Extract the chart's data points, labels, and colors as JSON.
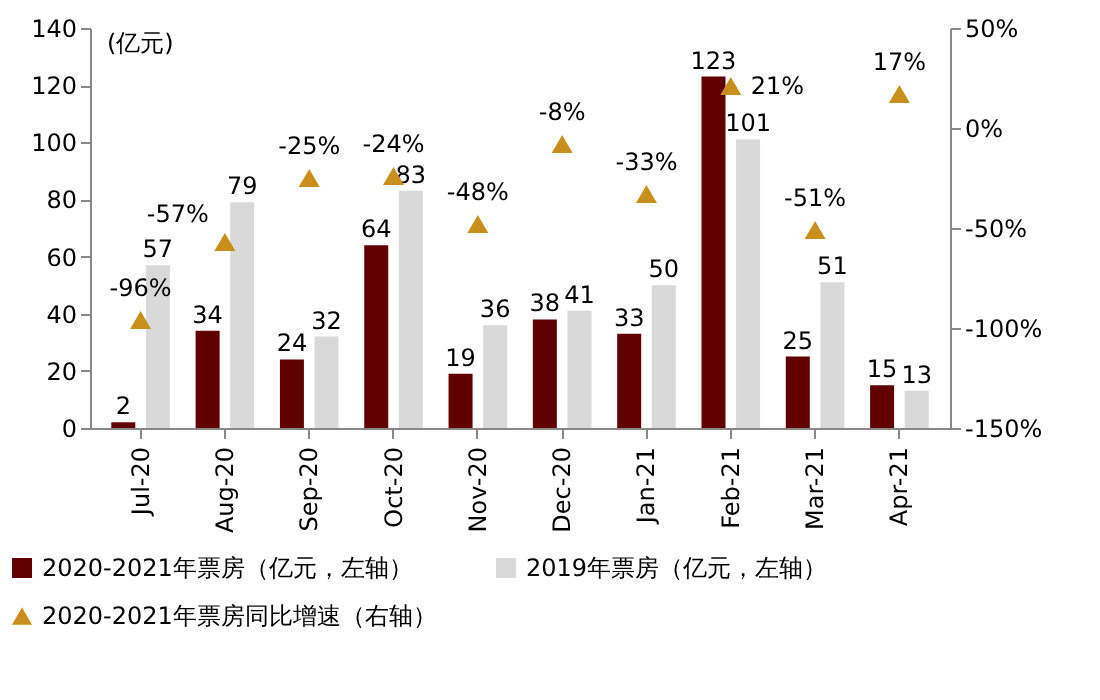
{
  "chart_data": {
    "type": "bar",
    "ylabel": "(亿元)",
    "categories": [
      "Jul-20",
      "Aug-20",
      "Sep-20",
      "Oct-20",
      "Nov-20",
      "Dec-20",
      "Jan-21",
      "Feb-21",
      "Mar-21",
      "Apr-21"
    ],
    "series": [
      {
        "name": "2020-2021年票房（亿元，左轴）",
        "color": "#600000",
        "values": [
          2,
          34,
          24,
          64,
          19,
          38,
          33,
          123,
          25,
          15
        ]
      },
      {
        "name": "2019年票房（亿元，左轴）",
        "color": "#d9d9d9",
        "values": [
          57,
          79,
          32,
          83,
          36,
          41,
          50,
          101,
          51,
          13
        ]
      },
      {
        "name": "2020-2021年票房同比增速（右轴）",
        "type": "scatter",
        "axis": "y2",
        "color": "#c8901a",
        "values": [
          -96,
          -57,
          -25,
          -24,
          -48,
          -8,
          -33,
          21,
          -51,
          17
        ],
        "value_labels": [
          "-96%",
          "-57%",
          "-25%",
          "-24%",
          "-48%",
          "-8%",
          "-33%",
          "21%",
          "-51%",
          "17%"
        ]
      }
    ],
    "data_labels": true,
    "marker": "triangle",
    "ylim": [
      0,
      140
    ],
    "yticks": [
      0,
      20,
      40,
      60,
      80,
      100,
      120,
      140
    ],
    "y2lim": [
      -150,
      50
    ],
    "y2ticks": [
      {
        "value": -150,
        "label": "-150%"
      },
      {
        "value": -100,
        "label": "-100%"
      },
      {
        "value": -50,
        "label": "-50%"
      },
      {
        "value": 0,
        "label": "0%"
      },
      {
        "value": 50,
        "label": "50%"
      }
    ],
    "grid": false,
    "legend": "bottom"
  }
}
